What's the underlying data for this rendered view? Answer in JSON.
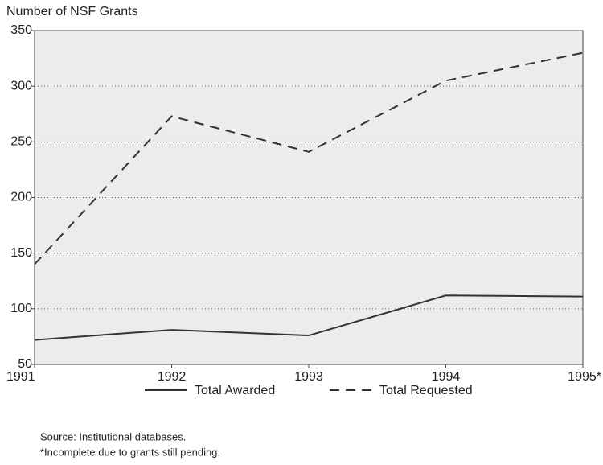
{
  "chart_data": {
    "type": "line",
    "y_axis_title": "Number of NSF Grants",
    "categories": [
      "1991",
      "1992",
      "1993",
      "1994",
      "1995*"
    ],
    "series": [
      {
        "name": "Total Awarded",
        "color": "#333333",
        "line_style": "solid",
        "values": [
          72,
          81,
          76,
          112,
          111
        ]
      },
      {
        "name": "Total Requested",
        "color": "#333333",
        "line_style": "dashed",
        "values": [
          140,
          273,
          241,
          305,
          330
        ]
      }
    ],
    "ylim": [
      50,
      350
    ],
    "yticks": [
      50,
      100,
      150,
      200,
      250,
      300,
      350
    ],
    "grid": true,
    "legend": "bottom",
    "source": "Source: Institutional databases.",
    "footnote": "*Incomplete due to grants still pending."
  }
}
